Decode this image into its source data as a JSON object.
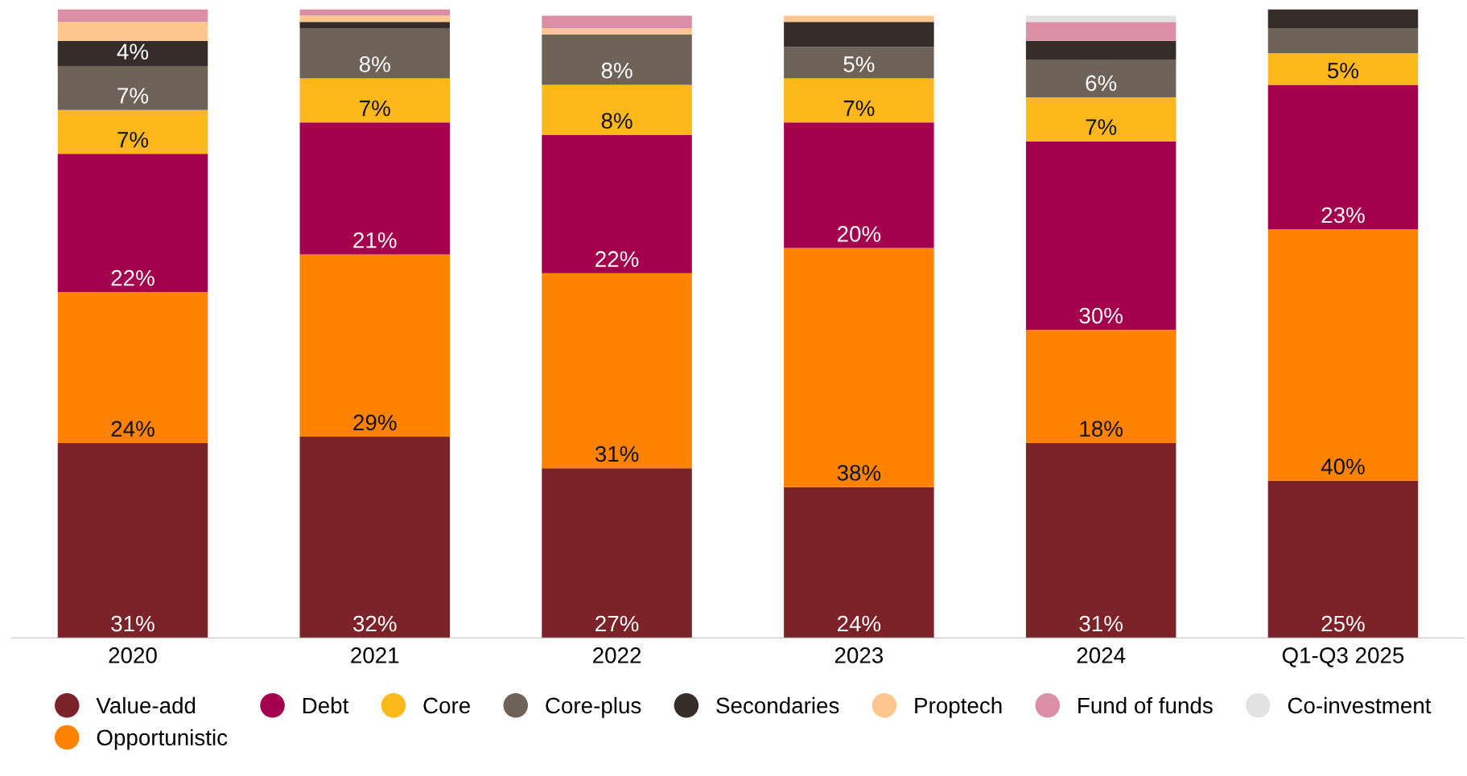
{
  "chart_data": {
    "type": "bar",
    "stacked": true,
    "ylim": [
      0,
      100
    ],
    "legend": "bottom",
    "grid": false,
    "tick_labels": "x",
    "categories": [
      "2020",
      "2021",
      "2022",
      "2023",
      "2024",
      "Q1-Q3 2025"
    ],
    "series": [
      {
        "name": "Value-add",
        "color": "#7b2329",
        "values": [
          31,
          32,
          27,
          24,
          31,
          25
        ],
        "value_labels": [
          "31%",
          "32%",
          "27%",
          "24%",
          "31%",
          "25%"
        ]
      },
      {
        "name": "Opportunistic",
        "color": "#ff8200",
        "values": [
          24,
          29,
          31,
          38,
          18,
          40
        ],
        "value_labels": [
          "24%",
          "29%",
          "31%",
          "38%",
          "18%",
          "40%"
        ]
      },
      {
        "name": "Debt",
        "color": "#a5004d",
        "values": [
          22,
          21,
          22,
          20,
          30,
          23
        ],
        "value_labels": [
          "22%",
          "21%",
          "22%",
          "20%",
          "30%",
          "23%"
        ]
      },
      {
        "name": "Core",
        "color": "#ffb81c",
        "values": [
          7,
          7,
          8,
          7,
          7,
          5
        ],
        "value_labels": [
          "7%",
          "7%",
          "8%",
          "7%",
          "7%",
          "5%"
        ]
      },
      {
        "name": "Core-plus",
        "color": "#6e6259",
        "values": [
          7,
          8,
          8,
          5,
          6,
          4
        ],
        "value_labels": [
          "7%",
          "8%",
          "8%",
          "5%",
          "6%",
          null
        ]
      },
      {
        "name": "Secondaries",
        "color": "#362d2b",
        "values": [
          4,
          1,
          0,
          4,
          3,
          3
        ],
        "value_labels": [
          "4%",
          null,
          null,
          null,
          null,
          null
        ]
      },
      {
        "name": "Proptech",
        "color": "#fdc68f",
        "values": [
          3,
          1,
          1,
          1,
          0,
          0
        ]
      },
      {
        "name": "Fund of funds",
        "color": "#db8fa7",
        "values": [
          2,
          1,
          2,
          0,
          3,
          0
        ]
      },
      {
        "name": "Co-investment",
        "color": "#e2e2e2",
        "values": [
          0,
          0,
          0,
          0,
          1,
          0
        ]
      }
    ]
  }
}
